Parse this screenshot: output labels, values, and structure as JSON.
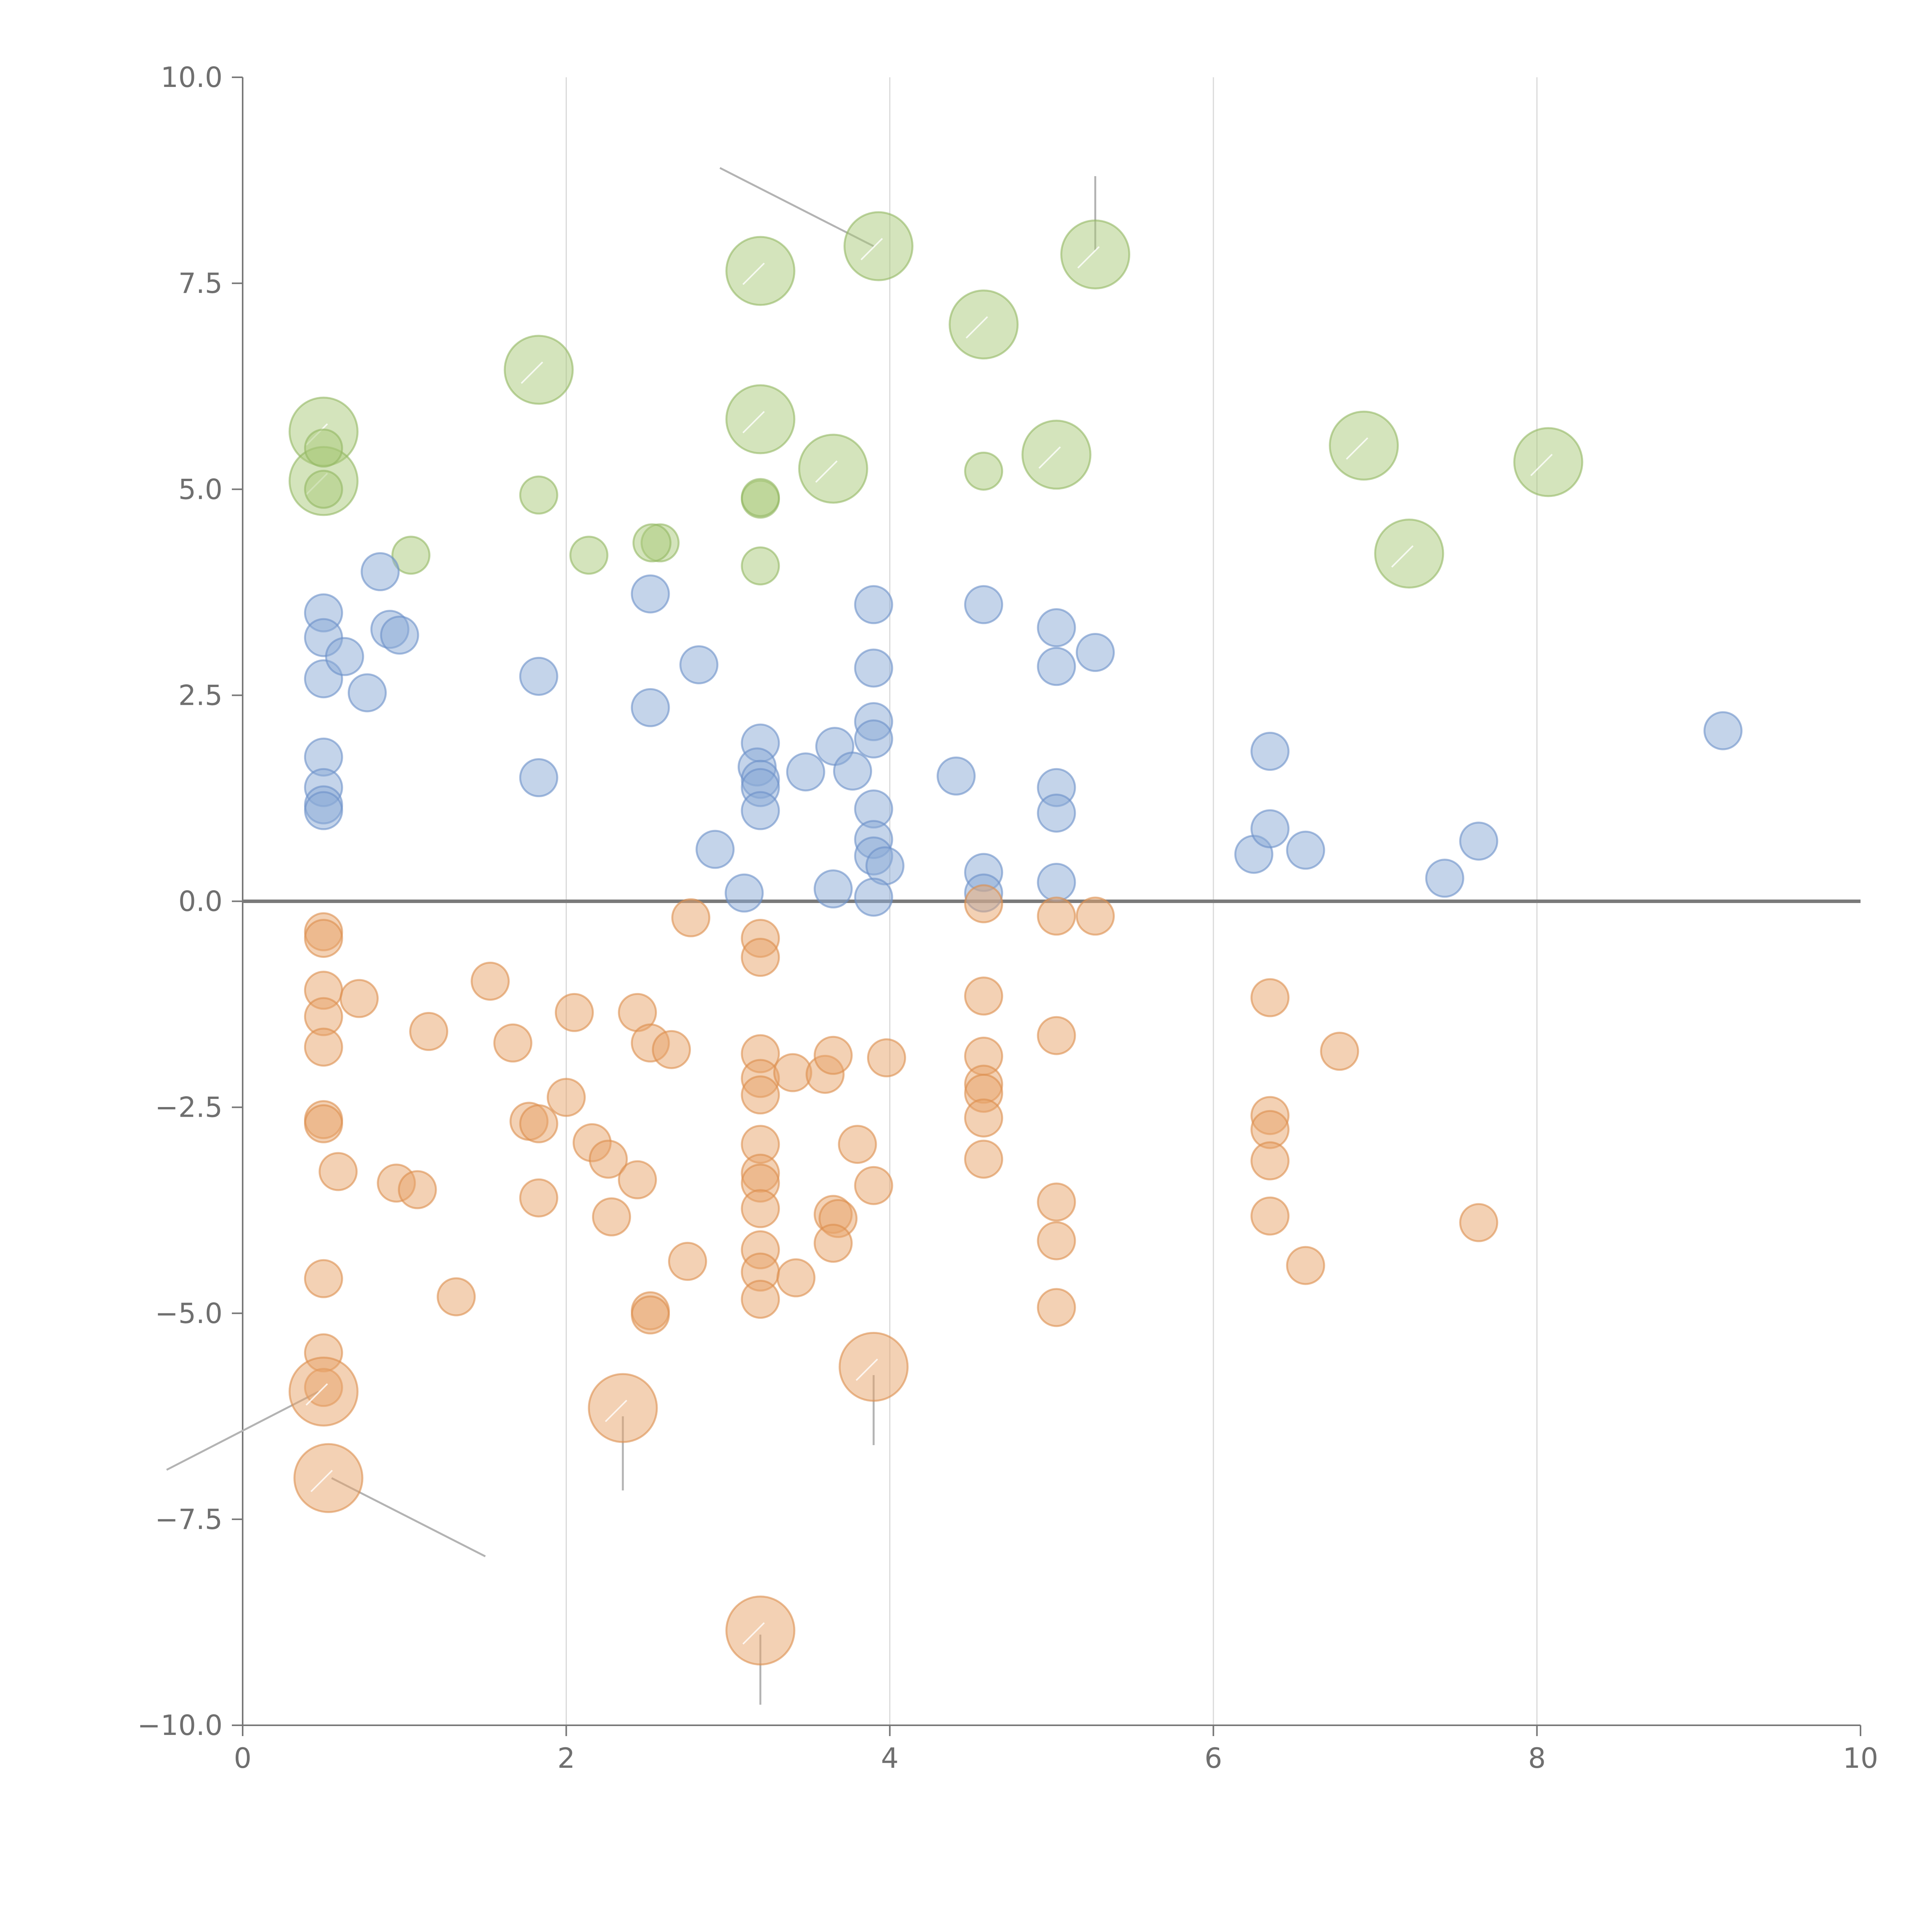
{
  "chart_data": {
    "type": "scatter",
    "title": "",
    "xlabel": "",
    "ylabel": "",
    "xlim": [
      0,
      10
    ],
    "ylim": [
      -10,
      10
    ],
    "grid": "vertical lines at x ticks",
    "legend": "none",
    "x_ticks": [
      {
        "value": 0,
        "label": "0"
      },
      {
        "value": 2,
        "label": "2"
      },
      {
        "value": 4,
        "label": "4"
      },
      {
        "value": 6,
        "label": "6"
      },
      {
        "value": 8,
        "label": "8"
      },
      {
        "value": 10,
        "label": "10"
      }
    ],
    "y_ticks": [
      {
        "value": 10,
        "label": "10.0"
      },
      {
        "value": 7.5,
        "label": "7.5"
      },
      {
        "value": 5,
        "label": "5.0"
      },
      {
        "value": 2.5,
        "label": "2.5"
      },
      {
        "value": 0,
        "label": "0.0"
      },
      {
        "value": -2.5,
        "label": "−2.5"
      },
      {
        "value": -5,
        "label": "−5.0"
      },
      {
        "value": -7.5,
        "label": "−7.5"
      },
      {
        "value": -10,
        "label": "−10.0"
      }
    ],
    "series": [
      {
        "name": "green",
        "color": "#a9c97a",
        "stroke": "#93b862",
        "points": [
          [
            0.5,
            5.7,
            2
          ],
          [
            0.5,
            5.1,
            2
          ],
          [
            0.5,
            5.5,
            0.8
          ],
          [
            0.5,
            5.0,
            0.8
          ],
          [
            1.83,
            6.45,
            2
          ],
          [
            1.83,
            4.93,
            0.8
          ],
          [
            1.04,
            4.2,
            0.8
          ],
          [
            2.14,
            4.2,
            0.8
          ],
          [
            2.58,
            4.35,
            0.8
          ],
          [
            2.53,
            4.35,
            0.8
          ],
          [
            3.2,
            7.65,
            2
          ],
          [
            3.2,
            5.85,
            2
          ],
          [
            3.2,
            4.88,
            0.8
          ],
          [
            3.2,
            4.9,
            0.8
          ],
          [
            3.2,
            4.07,
            0.8
          ],
          [
            3.65,
            5.25,
            2
          ],
          [
            3.93,
            7.95,
            2
          ],
          [
            4.58,
            7.0,
            2
          ],
          [
            4.58,
            5.22,
            0.8
          ],
          [
            5.03,
            5.42,
            2
          ],
          [
            5.27,
            7.85,
            2
          ],
          [
            6.93,
            5.53,
            2
          ],
          [
            7.21,
            4.22,
            2
          ],
          [
            8.07,
            5.33,
            2
          ]
        ]
      },
      {
        "name": "blue",
        "color": "#8aaad6",
        "stroke": "#6b8fc8",
        "points": [
          [
            0.5,
            3.5,
            0.8
          ],
          [
            0.5,
            3.2,
            0.8
          ],
          [
            0.5,
            2.7,
            0.8
          ],
          [
            0.5,
            1.75,
            0.8
          ],
          [
            0.5,
            1.38,
            0.8
          ],
          [
            0.5,
            1.17,
            0.8
          ],
          [
            0.5,
            1.1,
            0.8
          ],
          [
            0.63,
            2.97,
            0.8
          ],
          [
            0.77,
            2.53,
            0.8
          ],
          [
            0.85,
            4.0,
            0.8
          ],
          [
            0.91,
            3.3,
            0.8
          ],
          [
            0.97,
            3.23,
            0.8
          ],
          [
            1.83,
            2.73,
            0.8
          ],
          [
            1.83,
            1.5,
            0.8
          ],
          [
            2.52,
            3.73,
            0.8
          ],
          [
            2.52,
            2.35,
            0.8
          ],
          [
            2.82,
            2.87,
            0.8
          ],
          [
            2.92,
            0.63,
            0.8
          ],
          [
            3.1,
            0.1,
            0.8
          ],
          [
            3.2,
            1.92,
            0.8
          ],
          [
            3.18,
            1.63,
            0.8
          ],
          [
            3.2,
            1.48,
            0.8
          ],
          [
            3.2,
            1.38,
            0.8
          ],
          [
            3.2,
            1.1,
            0.8
          ],
          [
            3.48,
            1.57,
            0.8
          ],
          [
            3.66,
            1.88,
            0.8
          ],
          [
            3.77,
            1.58,
            0.8
          ],
          [
            3.65,
            0.15,
            0.8
          ],
          [
            3.9,
            3.6,
            0.8
          ],
          [
            3.9,
            2.83,
            0.8
          ],
          [
            3.9,
            2.18,
            0.8
          ],
          [
            3.9,
            1.97,
            0.8
          ],
          [
            3.9,
            1.12,
            0.8
          ],
          [
            3.9,
            0.75,
            0.8
          ],
          [
            3.9,
            0.55,
            0.8
          ],
          [
            3.97,
            0.43,
            0.8
          ],
          [
            3.9,
            0.05,
            0.8
          ],
          [
            4.41,
            1.52,
            0.8
          ],
          [
            4.58,
            3.6,
            0.8
          ],
          [
            4.58,
            0.35,
            0.8
          ],
          [
            4.58,
            0.1,
            0.8
          ],
          [
            5.03,
            3.32,
            0.8
          ],
          [
            5.03,
            2.85,
            0.8
          ],
          [
            5.27,
            3.02,
            0.8
          ],
          [
            5.03,
            1.38,
            0.8
          ],
          [
            5.03,
            1.07,
            0.8
          ],
          [
            5.03,
            0.23,
            0.8
          ],
          [
            6.25,
            0.57,
            0.8
          ],
          [
            6.35,
            1.82,
            0.8
          ],
          [
            6.35,
            0.88,
            0.8
          ],
          [
            6.57,
            0.62,
            0.8
          ],
          [
            7.43,
            0.28,
            0.8
          ],
          [
            7.64,
            0.73,
            0.8
          ],
          [
            9.15,
            2.07,
            0.8
          ]
        ]
      },
      {
        "name": "orange",
        "color": "#e8a46a",
        "stroke": "#dc8e4c",
        "points": [
          [
            0.5,
            -0.37,
            0.8
          ],
          [
            0.5,
            -0.45,
            0.8
          ],
          [
            0.5,
            -1.08,
            0.8
          ],
          [
            0.5,
            -1.4,
            0.8
          ],
          [
            0.5,
            -1.77,
            0.8
          ],
          [
            0.5,
            -2.65,
            0.8
          ],
          [
            0.5,
            -2.7,
            0.8
          ],
          [
            0.59,
            -3.28,
            0.8
          ],
          [
            0.72,
            -1.18,
            0.8
          ],
          [
            0.5,
            -4.58,
            0.8
          ],
          [
            0.5,
            -5.48,
            0.8
          ],
          [
            0.5,
            -5.9,
            0.8
          ],
          [
            0.5,
            -5.95,
            2
          ],
          [
            0.53,
            -7.0,
            2
          ],
          [
            0.95,
            -3.42,
            0.8
          ],
          [
            1.08,
            -3.5,
            0.8
          ],
          [
            1.15,
            -1.58,
            0.8
          ],
          [
            1.32,
            -4.8,
            0.8
          ],
          [
            1.53,
            -0.97,
            0.8
          ],
          [
            1.67,
            -1.72,
            0.8
          ],
          [
            1.77,
            -2.67,
            0.8
          ],
          [
            1.83,
            -2.7,
            0.8
          ],
          [
            1.83,
            -3.6,
            0.8
          ],
          [
            2.0,
            -2.38,
            0.8
          ],
          [
            2.05,
            -1.35,
            0.8
          ],
          [
            2.16,
            -2.93,
            0.8
          ],
          [
            2.26,
            -3.13,
            0.8
          ],
          [
            2.28,
            -3.83,
            0.8
          ],
          [
            2.35,
            -6.15,
            2
          ],
          [
            2.44,
            -1.35,
            0.8
          ],
          [
            2.44,
            -3.38,
            0.8
          ],
          [
            2.52,
            -1.72,
            0.8
          ],
          [
            2.52,
            -4.97,
            0.8
          ],
          [
            2.52,
            -5.02,
            0.8
          ],
          [
            2.65,
            -1.8,
            0.8
          ],
          [
            2.75,
            -4.37,
            0.8
          ],
          [
            2.77,
            -0.2,
            0.8
          ],
          [
            3.2,
            -0.45,
            0.8
          ],
          [
            3.2,
            -0.68,
            0.8
          ],
          [
            3.2,
            -1.85,
            0.8
          ],
          [
            3.2,
            -2.15,
            0.8
          ],
          [
            3.2,
            -2.35,
            0.8
          ],
          [
            3.2,
            -2.95,
            0.8
          ],
          [
            3.2,
            -3.3,
            0.8
          ],
          [
            3.2,
            -3.42,
            0.8
          ],
          [
            3.2,
            -3.73,
            0.8
          ],
          [
            3.2,
            -4.23,
            0.8
          ],
          [
            3.2,
            -4.5,
            0.8
          ],
          [
            3.2,
            -4.83,
            0.8
          ],
          [
            3.2,
            -8.85,
            2
          ],
          [
            3.4,
            -2.08,
            0.8
          ],
          [
            3.42,
            -4.57,
            0.8
          ],
          [
            3.6,
            -2.1,
            0.8
          ],
          [
            3.65,
            -1.87,
            0.8
          ],
          [
            3.65,
            -3.8,
            0.8
          ],
          [
            3.68,
            -3.85,
            0.8
          ],
          [
            3.65,
            -4.15,
            0.8
          ],
          [
            3.8,
            -2.95,
            0.8
          ],
          [
            3.9,
            -3.45,
            0.8
          ],
          [
            3.9,
            -5.65,
            2
          ],
          [
            3.98,
            -1.9,
            0.8
          ],
          [
            4.58,
            -0.03,
            0.8
          ],
          [
            4.58,
            -1.15,
            0.8
          ],
          [
            4.58,
            -1.88,
            0.8
          ],
          [
            4.58,
            -2.22,
            0.8
          ],
          [
            4.58,
            -2.33,
            0.8
          ],
          [
            4.58,
            -2.63,
            0.8
          ],
          [
            4.58,
            -3.13,
            0.8
          ],
          [
            5.03,
            -0.18,
            0.8
          ],
          [
            5.27,
            -0.18,
            0.8
          ],
          [
            5.03,
            -1.63,
            0.8
          ],
          [
            5.03,
            -3.65,
            0.8
          ],
          [
            5.03,
            -4.12,
            0.8
          ],
          [
            5.03,
            -4.93,
            0.8
          ],
          [
            6.35,
            -1.17,
            0.8
          ],
          [
            6.35,
            -2.6,
            0.8
          ],
          [
            6.35,
            -2.77,
            0.8
          ],
          [
            6.35,
            -3.15,
            0.8
          ],
          [
            6.35,
            -3.82,
            0.8
          ],
          [
            6.57,
            -4.42,
            0.8
          ],
          [
            6.78,
            -1.82,
            0.8
          ],
          [
            7.64,
            -3.9,
            0.8
          ]
        ]
      }
    ],
    "leader_lines": [
      [
        [
          2.95,
          8.9
        ],
        [
          3.9,
          7.95
        ]
      ],
      [
        [
          5.27,
          8.8
        ],
        [
          5.27,
          7.9
        ]
      ],
      [
        [
          0.47,
          -5.95
        ],
        [
          -0.47,
          -6.9
        ]
      ],
      [
        [
          0.55,
          -7.0
        ],
        [
          1.5,
          -7.95
        ]
      ],
      [
        [
          2.35,
          -6.25
        ],
        [
          2.35,
          -7.15
        ]
      ],
      [
        [
          3.9,
          -5.75
        ],
        [
          3.9,
          -6.6
        ]
      ],
      [
        [
          3.2,
          -8.9
        ],
        [
          3.2,
          -9.75
        ]
      ]
    ]
  }
}
